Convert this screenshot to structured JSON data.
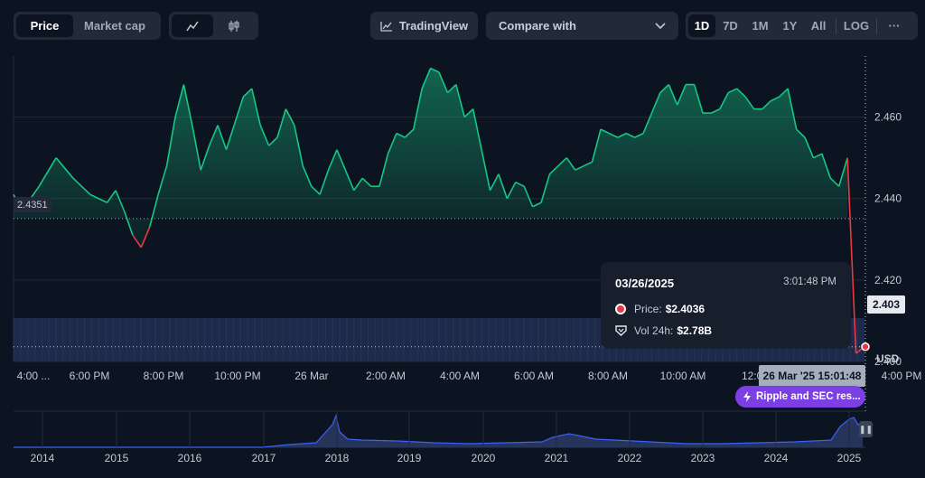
{
  "toolbar": {
    "view_tabs": [
      "Price",
      "Market cap"
    ],
    "active_view": "Price",
    "tradingview_label": "TradingView",
    "compare_label": "Compare with",
    "ranges": [
      "1D",
      "7D",
      "1M",
      "1Y",
      "All"
    ],
    "active_range": "1D",
    "log_label": "LOG",
    "more_label": "···"
  },
  "tooltip": {
    "date": "03/26/2025",
    "time": "3:01:48 PM",
    "price_label": "Price:",
    "price_value": "$2.4036",
    "vol_label": "Vol 24h:",
    "vol_value": "$2.78B"
  },
  "price_tag": "2.403",
  "ref_price_label": "2.4351",
  "cursor_time_label": "26 Mar '25 15:01:48",
  "news_badge": "Ripple and SEC res...",
  "currency_label": "USD",
  "colors": {
    "up": "#16c784",
    "down": "#ea3943",
    "volume": "#1e2a4a",
    "overview": "#3861fb"
  },
  "chart_data": {
    "type": "area",
    "ylim": [
      2.4,
      2.475
    ],
    "yticks": [
      "2.460",
      "2.440",
      "2.420",
      "2.400"
    ],
    "xticks": [
      "4:00 ...",
      "6:00 PM",
      "8:00 PM",
      "10:00 PM",
      "26 Mar",
      "2:00 AM",
      "4:00 AM",
      "6:00 AM",
      "8:00 AM",
      "10:00 AM",
      "12:00",
      "4:00 PM"
    ],
    "reference_price": 2.4351,
    "series": [
      {
        "points": [
          [
            0,
            2.441
          ],
          [
            0.01,
            2.437
          ],
          [
            0.03,
            2.443
          ],
          [
            0.05,
            2.45
          ],
          [
            0.07,
            2.445
          ],
          [
            0.09,
            2.441
          ],
          [
            0.11,
            2.439
          ],
          [
            0.12,
            2.442
          ],
          [
            0.13,
            2.437
          ],
          [
            0.14,
            2.431
          ],
          [
            0.15,
            2.428
          ],
          [
            0.16,
            2.433
          ],
          [
            0.17,
            2.441
          ],
          [
            0.18,
            2.448
          ],
          [
            0.19,
            2.46
          ],
          [
            0.2,
            2.468
          ],
          [
            0.21,
            2.458
          ],
          [
            0.22,
            2.447
          ],
          [
            0.23,
            2.453
          ],
          [
            0.24,
            2.458
          ],
          [
            0.25,
            2.452
          ],
          [
            0.27,
            2.465
          ],
          [
            0.28,
            2.467
          ],
          [
            0.29,
            2.458
          ],
          [
            0.3,
            2.453
          ],
          [
            0.31,
            2.455
          ],
          [
            0.32,
            2.462
          ],
          [
            0.33,
            2.458
          ],
          [
            0.34,
            2.448
          ],
          [
            0.35,
            2.443
          ],
          [
            0.36,
            2.441
          ],
          [
            0.37,
            2.447
          ],
          [
            0.38,
            2.452
          ],
          [
            0.39,
            2.447
          ],
          [
            0.4,
            2.442
          ],
          [
            0.41,
            2.445
          ],
          [
            0.42,
            2.443
          ],
          [
            0.43,
            2.443
          ],
          [
            0.44,
            2.451
          ],
          [
            0.45,
            2.456
          ],
          [
            0.46,
            2.455
          ],
          [
            0.47,
            2.457
          ],
          [
            0.48,
            2.467
          ],
          [
            0.49,
            2.472
          ],
          [
            0.5,
            2.471
          ],
          [
            0.51,
            2.466
          ],
          [
            0.52,
            2.468
          ],
          [
            0.53,
            2.46
          ],
          [
            0.54,
            2.462
          ],
          [
            0.55,
            2.452
          ],
          [
            0.56,
            2.442
          ],
          [
            0.57,
            2.446
          ],
          [
            0.58,
            2.44
          ],
          [
            0.59,
            2.444
          ],
          [
            0.6,
            2.443
          ],
          [
            0.61,
            2.438
          ],
          [
            0.62,
            2.439
          ],
          [
            0.63,
            2.446
          ],
          [
            0.64,
            2.448
          ],
          [
            0.65,
            2.45
          ],
          [
            0.66,
            2.447
          ],
          [
            0.67,
            2.448
          ],
          [
            0.68,
            2.449
          ],
          [
            0.69,
            2.457
          ],
          [
            0.7,
            2.456
          ],
          [
            0.71,
            2.455
          ],
          [
            0.72,
            2.456
          ],
          [
            0.73,
            2.455
          ],
          [
            0.74,
            2.456
          ],
          [
            0.75,
            2.461
          ],
          [
            0.76,
            2.466
          ],
          [
            0.77,
            2.468
          ],
          [
            0.78,
            2.463
          ],
          [
            0.79,
            2.468
          ],
          [
            0.8,
            2.468
          ],
          [
            0.81,
            2.461
          ],
          [
            0.82,
            2.461
          ],
          [
            0.83,
            2.462
          ],
          [
            0.84,
            2.466
          ],
          [
            0.85,
            2.467
          ],
          [
            0.86,
            2.465
          ],
          [
            0.87,
            2.462
          ],
          [
            0.88,
            2.462
          ],
          [
            0.89,
            2.464
          ],
          [
            0.9,
            2.465
          ],
          [
            0.91,
            2.467
          ],
          [
            0.92,
            2.457
          ],
          [
            0.93,
            2.455
          ],
          [
            0.94,
            2.45
          ],
          [
            0.95,
            2.451
          ],
          [
            0.96,
            2.445
          ],
          [
            0.97,
            2.443
          ],
          [
            0.98,
            2.45
          ],
          [
            0.99,
            2.402
          ],
          [
            1,
            2.4036
          ]
        ]
      }
    ],
    "overview": {
      "xticks": [
        "2014",
        "2015",
        "2016",
        "2017",
        "2018",
        "2019",
        "2020",
        "2021",
        "2022",
        "2023",
        "2024",
        "2025"
      ]
    }
  }
}
